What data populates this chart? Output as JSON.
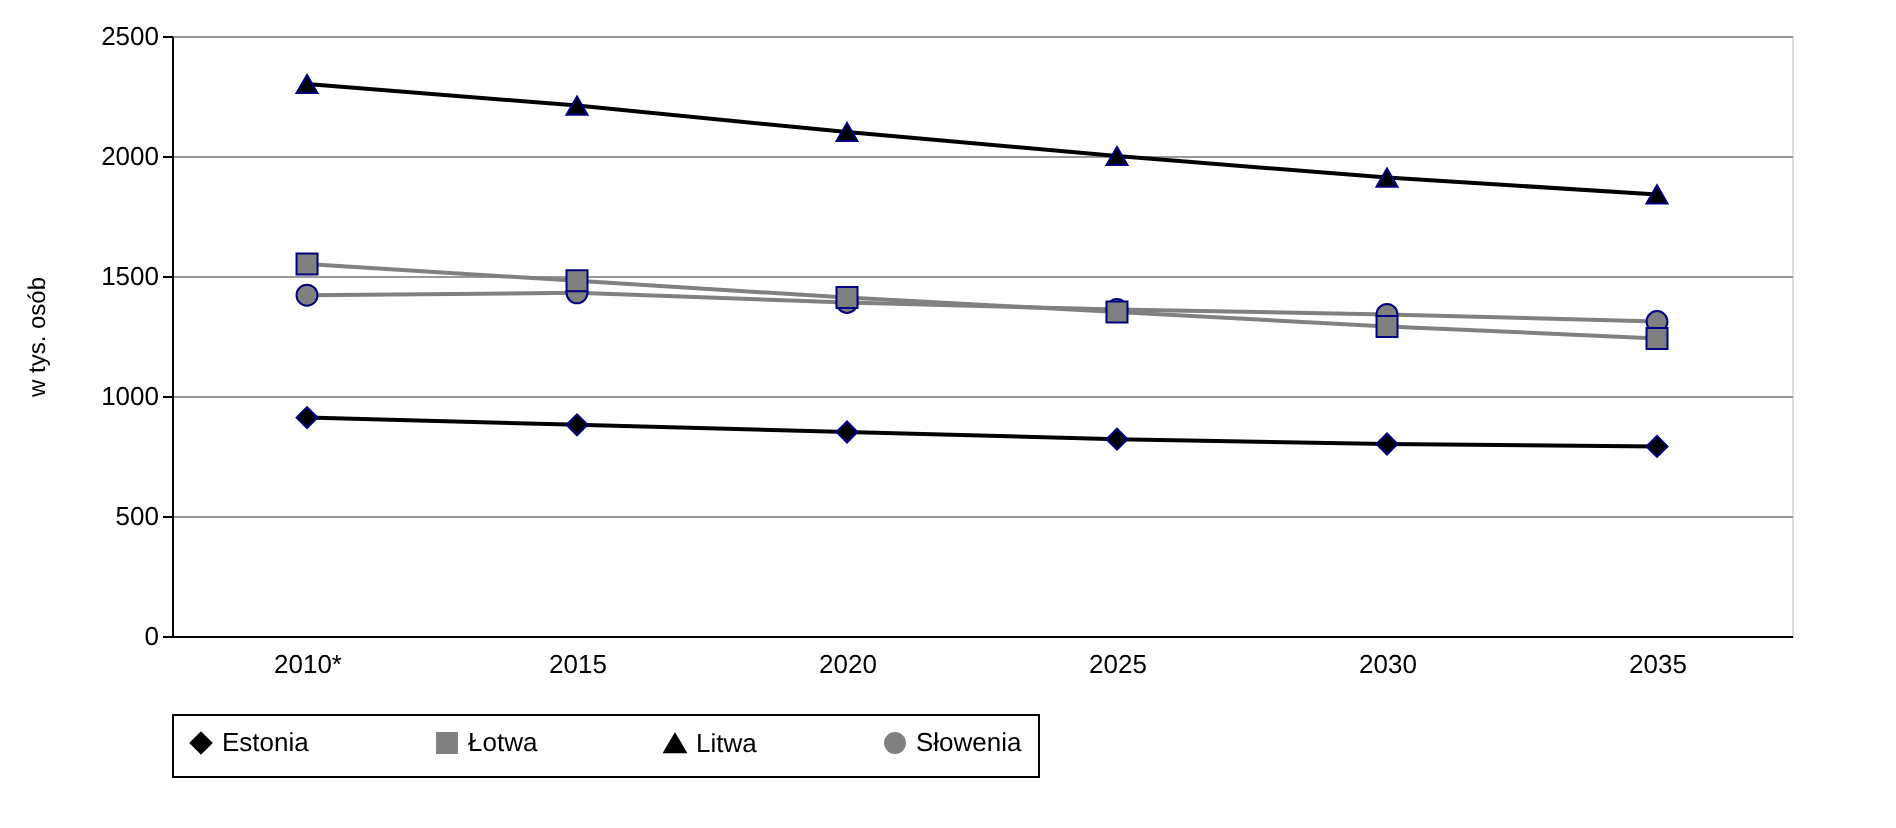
{
  "chart_data": {
    "type": "line",
    "ylabel": "w tys. osób",
    "categories": [
      "2010*",
      "2015",
      "2020",
      "2025",
      "2030",
      "2035"
    ],
    "ylim": [
      0,
      2500
    ],
    "yticks": [
      0,
      500,
      1000,
      1500,
      2000,
      2500
    ],
    "grid": "y",
    "legend": "bottom",
    "series": [
      {
        "name": "Estonia",
        "color": "#000000",
        "marker": "diamond",
        "values": [
          910,
          880,
          850,
          820,
          800,
          790
        ]
      },
      {
        "name": "Łotwa",
        "color": "#808080",
        "marker": "square",
        "values": [
          1550,
          1480,
          1410,
          1350,
          1290,
          1240
        ]
      },
      {
        "name": "Litwa",
        "color": "#000000",
        "marker": "triangle",
        "values": [
          2300,
          2210,
          2100,
          2000,
          1910,
          1840
        ]
      },
      {
        "name": "Słowenia",
        "color": "#808080",
        "marker": "circle",
        "values": [
          1420,
          1430,
          1390,
          1360,
          1340,
          1310
        ]
      }
    ]
  }
}
